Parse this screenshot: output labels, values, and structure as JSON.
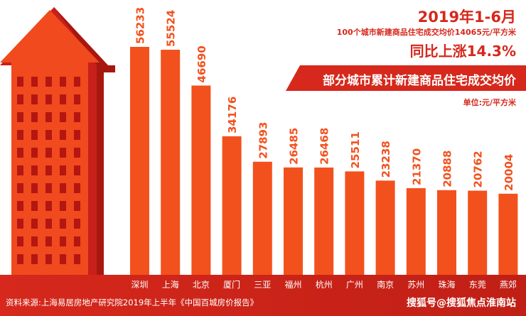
{
  "header": {
    "date": "2019年1-6月",
    "subtitle": "100个城市新建商品住宅成交均价14065元/平方米",
    "yoy": "同比上涨14.3%"
  },
  "banner": {
    "title": "部分城市累计新建商品住宅成交均价"
  },
  "unit": "单位:元/平方米",
  "footer": {
    "source": "资料来源:上海易居房地产研究院2019年上半年《中国百城房价报告》",
    "watermark": "搜狐号@搜狐焦点淮南站"
  },
  "colors": {
    "bar": "#f2511d",
    "accent": "#d6281c",
    "building": "#f04a1e",
    "building_side": "#c8201a",
    "window": "#b41612"
  },
  "chart_data": {
    "type": "bar",
    "categories": [
      "深圳",
      "上海",
      "北京",
      "厦门",
      "三亚",
      "福州",
      "杭州",
      "广州",
      "南京",
      "苏州",
      "珠海",
      "东莞",
      "燕郊"
    ],
    "values": [
      56233,
      55524,
      46690,
      34176,
      27893,
      26485,
      26468,
      25511,
      23238,
      21370,
      20888,
      20762,
      20004
    ],
    "ylim": [
      0,
      62000
    ],
    "grid": false,
    "legend": "none"
  }
}
